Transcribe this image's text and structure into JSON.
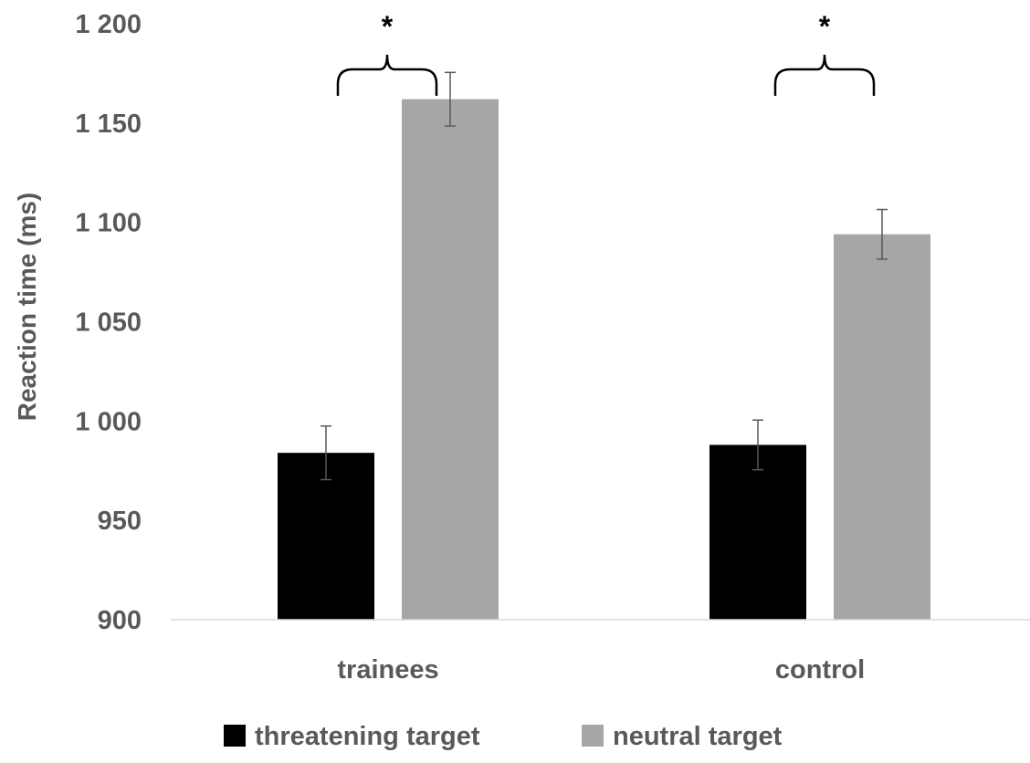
{
  "chart_data": {
    "type": "bar",
    "title": "",
    "xlabel": "",
    "ylabel": "Reaction time (ms)",
    "ylim": [
      900,
      1200
    ],
    "yticks": [
      900,
      950,
      1000,
      1050,
      1100,
      1150,
      1200
    ],
    "ytick_labels": [
      "900",
      "950",
      "1 000",
      "1 050",
      "1 100",
      "1 150",
      "1 200"
    ],
    "categories": [
      "trainees",
      "control"
    ],
    "series": [
      {
        "name": "threatening target",
        "color": "#000000",
        "values": [
          984,
          988
        ],
        "error": [
          13.5,
          12.5
        ]
      },
      {
        "name": "neutral target",
        "color": "#a6a6a6",
        "values": [
          1162,
          1094
        ],
        "error": [
          13.5,
          12.5
        ]
      }
    ],
    "significance": [
      {
        "category": "trainees",
        "label": "*"
      },
      {
        "category": "control",
        "label": "*"
      }
    ],
    "grid": false,
    "legend": "bottom"
  }
}
